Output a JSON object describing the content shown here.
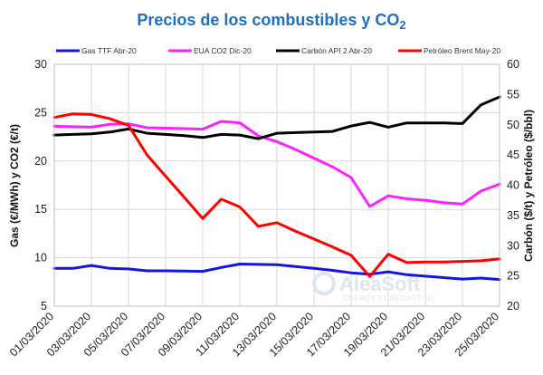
{
  "chart_data": {
    "type": "line",
    "title": "Precios de los combustibles y CO",
    "title_subscript": "2",
    "ylabel_left": "Gas (€/MWh) y CO2 (€/t)",
    "ylabel_right": "Carbón ($/t) y Petróleo ($/bbl)",
    "xlabel": "",
    "ylim_left": [
      5,
      30
    ],
    "yticks_left": [
      5,
      10,
      15,
      20,
      25,
      30
    ],
    "ylim_right": [
      20,
      60
    ],
    "yticks_right": [
      20,
      25,
      30,
      35,
      40,
      45,
      50,
      55,
      60
    ],
    "grid": true,
    "legend_position": "top",
    "x": [
      "01/03/2020",
      "02/03/2020",
      "03/03/2020",
      "04/03/2020",
      "05/03/2020",
      "06/03/2020",
      "07/03/2020",
      "08/03/2020",
      "09/03/2020",
      "10/03/2020",
      "11/03/2020",
      "12/03/2020",
      "13/03/2020",
      "14/03/2020",
      "15/03/2020",
      "16/03/2020",
      "17/03/2020",
      "18/03/2020",
      "19/03/2020",
      "20/03/2020",
      "21/03/2020",
      "22/03/2020",
      "23/03/2020",
      "24/03/2020",
      "25/03/2020"
    ],
    "x_tick_labels": [
      "01/03/2020",
      "03/03/2020",
      "05/03/2020",
      "07/03/2020",
      "09/03/2020",
      "11/03/2020",
      "13/03/2020",
      "15/03/2020",
      "17/03/2020",
      "19/03/2020",
      "21/03/2020",
      "23/03/2020",
      "25/03/2020"
    ],
    "series": [
      {
        "name": "Gas TTF Abr-20",
        "axis": "left",
        "color": "#1515e0",
        "values": [
          8.9,
          8.9,
          9.2,
          8.9,
          8.85,
          8.65,
          8.65,
          8.62,
          8.6,
          9.0,
          9.35,
          9.32,
          9.28,
          9.1,
          8.9,
          8.7,
          8.45,
          8.3,
          8.55,
          8.25,
          8.1,
          7.95,
          7.8,
          7.9,
          7.75
        ]
      },
      {
        "name": "EUA CO2 Dic-20",
        "axis": "left",
        "color": "#ff1fff",
        "values": [
          23.6,
          23.55,
          23.5,
          23.8,
          23.85,
          23.45,
          23.4,
          23.35,
          23.3,
          24.1,
          23.95,
          22.6,
          22.0,
          21.2,
          20.3,
          19.4,
          18.3,
          15.3,
          16.4,
          16.1,
          15.95,
          15.7,
          15.55,
          16.9,
          17.6
        ]
      },
      {
        "name": "Carbón API 2 Abr-20",
        "axis": "right",
        "color": "#000000",
        "values": [
          48.3,
          48.4,
          48.5,
          48.8,
          49.3,
          48.6,
          48.4,
          48.2,
          47.9,
          48.4,
          48.3,
          47.7,
          48.6,
          48.7,
          48.8,
          48.9,
          49.8,
          50.4,
          49.6,
          50.3,
          50.3,
          50.3,
          50.2,
          53.3,
          54.6
        ]
      },
      {
        "name": "Petróleo Brent May-20",
        "axis": "right",
        "color": "#ff0000",
        "values": [
          51.2,
          51.8,
          51.7,
          51.0,
          49.9,
          45.0,
          41.5,
          38.0,
          34.5,
          37.7,
          36.4,
          33.2,
          33.8,
          32.4,
          31.1,
          29.8,
          28.4,
          24.9,
          28.6,
          27.2,
          27.3,
          27.3,
          27.4,
          27.5,
          27.8
        ]
      }
    ],
    "colors": {
      "title": "#1f6fbf",
      "grid": "#d9d9d9",
      "watermark": "#dfe5ee"
    }
  },
  "watermark": {
    "brand": "AleaSoft",
    "tagline": "ENERGY FORECASTING"
  }
}
